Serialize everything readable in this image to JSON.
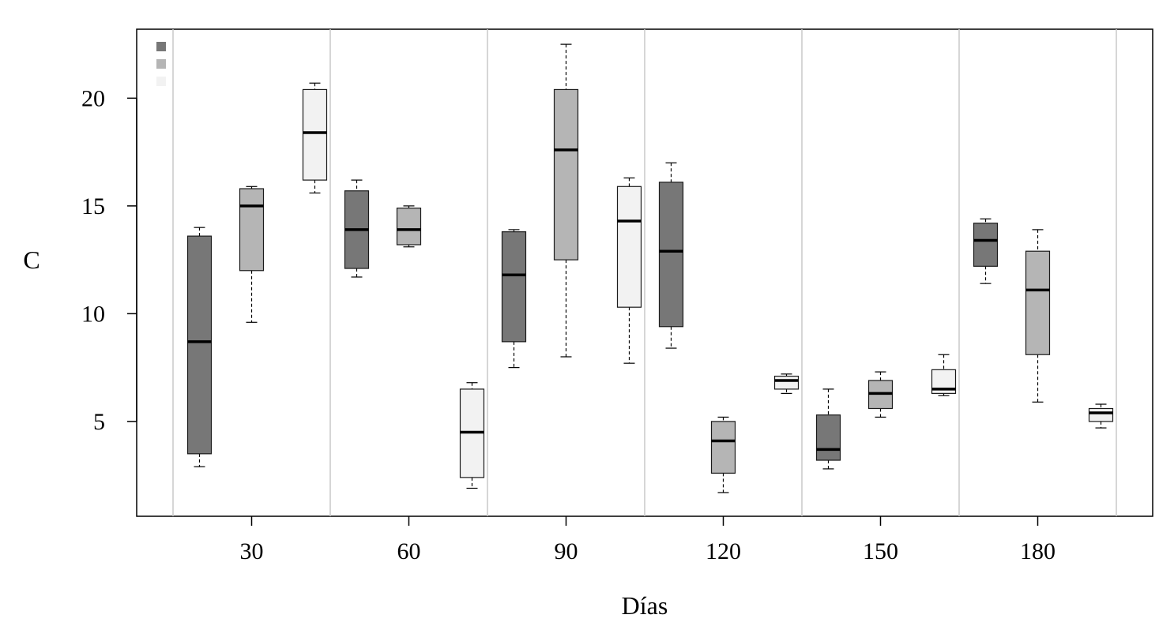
{
  "chart_data": {
    "type": "boxplot",
    "xlabel": "Días",
    "ylabel": "C",
    "ylim": [
      0.6,
      23.2
    ],
    "y_ticks": [
      5,
      10,
      15,
      20
    ],
    "legend": {
      "placement": "top-left",
      "entries": [
        {
          "name": "",
          "color": "#777777"
        },
        {
          "name": "",
          "color": "#b5b5b5"
        },
        {
          "name": "",
          "color": "#f2f2f2"
        }
      ]
    },
    "grid": "vertical separators between day groups",
    "categories": [
      "30",
      "60",
      "90",
      "120",
      "150",
      "180"
    ],
    "series_colors": [
      "#777777",
      "#b5b5b5",
      "#f2f2f2"
    ],
    "groups": [
      {
        "label": "30",
        "boxes": [
          {
            "series": 0,
            "min": 2.9,
            "q1": 3.5,
            "median": 8.7,
            "q3": 13.6,
            "max": 14.0
          },
          {
            "series": 1,
            "min": 9.6,
            "q1": 12.0,
            "median": 15.0,
            "q3": 15.8,
            "max": 15.9
          },
          {
            "series": 2,
            "min": 15.6,
            "q1": 16.2,
            "median": 18.4,
            "q3": 20.4,
            "max": 20.7
          }
        ]
      },
      {
        "label": "60",
        "boxes": [
          {
            "series": 0,
            "min": 11.7,
            "q1": 12.1,
            "median": 13.9,
            "q3": 15.7,
            "max": 16.2
          },
          {
            "series": 1,
            "min": 13.1,
            "q1": 13.2,
            "median": 13.9,
            "q3": 14.9,
            "max": 15.0
          },
          {
            "series": 2,
            "min": 1.9,
            "q1": 2.4,
            "median": 4.5,
            "q3": 6.5,
            "max": 6.8
          }
        ]
      },
      {
        "label": "90",
        "boxes": [
          {
            "series": 0,
            "min": 7.5,
            "q1": 8.7,
            "median": 11.8,
            "q3": 13.8,
            "max": 13.9
          },
          {
            "series": 1,
            "min": 8.0,
            "q1": 12.5,
            "median": 17.6,
            "q3": 20.4,
            "max": 22.5
          },
          {
            "series": 2,
            "min": 7.7,
            "q1": 10.3,
            "median": 14.3,
            "q3": 15.9,
            "max": 16.3
          }
        ]
      },
      {
        "label": "120",
        "boxes": [
          {
            "series": 0,
            "min": 8.4,
            "q1": 9.4,
            "median": 12.9,
            "q3": 16.1,
            "max": 17.0
          },
          {
            "series": 1,
            "min": 1.7,
            "q1": 2.6,
            "median": 4.1,
            "q3": 5.0,
            "max": 5.2
          },
          {
            "series": 2,
            "min": 6.3,
            "q1": 6.5,
            "median": 6.9,
            "q3": 7.1,
            "max": 7.2
          }
        ]
      },
      {
        "label": "150",
        "boxes": [
          {
            "series": 0,
            "min": 2.8,
            "q1": 3.2,
            "median": 3.7,
            "q3": 5.3,
            "max": 6.5
          },
          {
            "series": 1,
            "min": 5.2,
            "q1": 5.6,
            "median": 6.3,
            "q3": 6.9,
            "max": 7.3
          },
          {
            "series": 2,
            "min": 6.2,
            "q1": 6.3,
            "median": 6.5,
            "q3": 7.4,
            "max": 8.1
          }
        ]
      },
      {
        "label": "180",
        "boxes": [
          {
            "series": 0,
            "min": 11.4,
            "q1": 12.2,
            "median": 13.4,
            "q3": 14.2,
            "max": 14.4
          },
          {
            "series": 1,
            "min": 5.9,
            "q1": 8.1,
            "median": 11.1,
            "q3": 12.9,
            "max": 13.9
          },
          {
            "series": 2,
            "min": 4.7,
            "q1": 5.0,
            "median": 5.4,
            "q3": 5.6,
            "max": 5.8
          }
        ]
      }
    ]
  }
}
